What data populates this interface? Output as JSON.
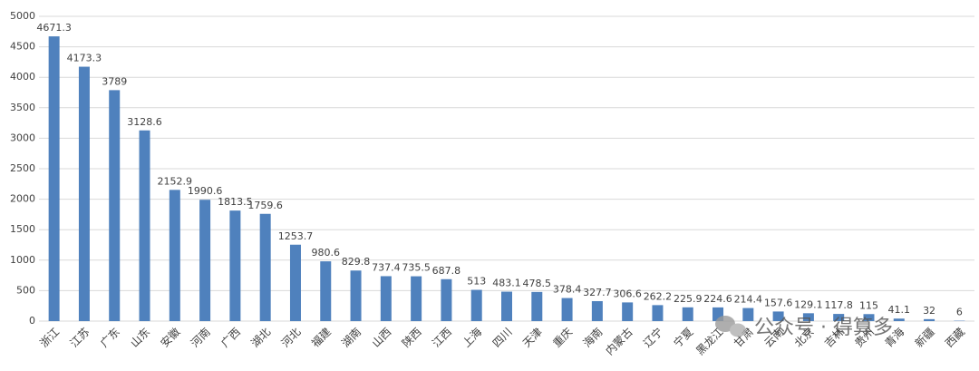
{
  "chart_data": {
    "type": "bar",
    "categories": [
      "浙江",
      "江苏",
      "广东",
      "山东",
      "安徽",
      "河南",
      "广西",
      "湖北",
      "河北",
      "福建",
      "湖南",
      "山西",
      "陕西",
      "江西",
      "上海",
      "四川",
      "天津",
      "重庆",
      "海南",
      "内蒙古",
      "辽宁",
      "宁夏",
      "黑龙江",
      "甘肃",
      "云南",
      "北京",
      "吉林",
      "贵州",
      "青海",
      "新疆",
      "西藏"
    ],
    "values": [
      4671.3,
      4173.3,
      3789,
      3128.6,
      2152.9,
      1990.6,
      1813.5,
      1759.6,
      1253.7,
      980.6,
      829.8,
      737.4,
      735.5,
      687.8,
      513,
      483.1,
      478.5,
      378.4,
      327.7,
      306.6,
      262.2,
      225.9,
      224.6,
      214.4,
      157.6,
      129.1,
      117.8,
      115,
      41.1,
      32,
      6
    ],
    "color": "#4f81bd",
    "ylim": [
      0,
      5000
    ],
    "yticks": [
      0,
      500,
      1000,
      1500,
      2000,
      2500,
      3000,
      3500,
      4000,
      4500,
      5000
    ],
    "grid": true,
    "watermark": "公众号 · 得算多"
  }
}
